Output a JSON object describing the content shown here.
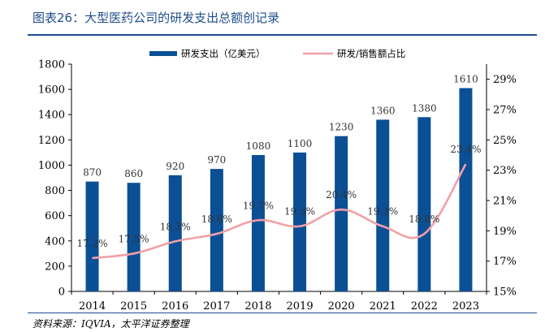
{
  "title": "图表26：大型医药公司的研发支出总额创记录",
  "source": "资料来源：IQVIA，太平洋证券整理",
  "colors": {
    "bar": "#0b4f95",
    "line": "#f2a0a8",
    "title": "#1f4e8c"
  },
  "chart_data": {
    "type": "bar",
    "categories": [
      "2014",
      "2015",
      "2016",
      "2017",
      "2018",
      "2019",
      "2020",
      "2021",
      "2022",
      "2023"
    ],
    "series": [
      {
        "name": "研发支出（亿美元）",
        "type": "bar",
        "axis": "left",
        "values": [
          870,
          860,
          920,
          970,
          1080,
          1100,
          1230,
          1360,
          1380,
          1610
        ],
        "labels": [
          "870",
          "860",
          "920",
          "970",
          "1080",
          "1100",
          "1230",
          "1360",
          "1380",
          "1610"
        ]
      },
      {
        "name": "研发/销售额占比",
        "type": "line",
        "axis": "right",
        "values": [
          17.2,
          17.5,
          18.3,
          18.8,
          19.7,
          19.3,
          20.4,
          19.3,
          18.8,
          23.4
        ],
        "labels": [
          "17.2%",
          "17.5%",
          "18.3%",
          "18.8%",
          "19.7%",
          "19.3%",
          "20.4%",
          "19.3%",
          "18.8%",
          "23.4%"
        ]
      }
    ],
    "y_left": {
      "min": 0,
      "max": 1800,
      "ticks": [
        "0",
        "200",
        "400",
        "600",
        "800",
        "1000",
        "1200",
        "1400",
        "1600",
        "1800"
      ]
    },
    "y_right": {
      "min": 15,
      "max": 30,
      "ticks": [
        "15%",
        "17%",
        "19%",
        "21%",
        "23%",
        "25%",
        "27%",
        "29%"
      ]
    },
    "legend": {
      "position": "top"
    },
    "grid": false
  }
}
